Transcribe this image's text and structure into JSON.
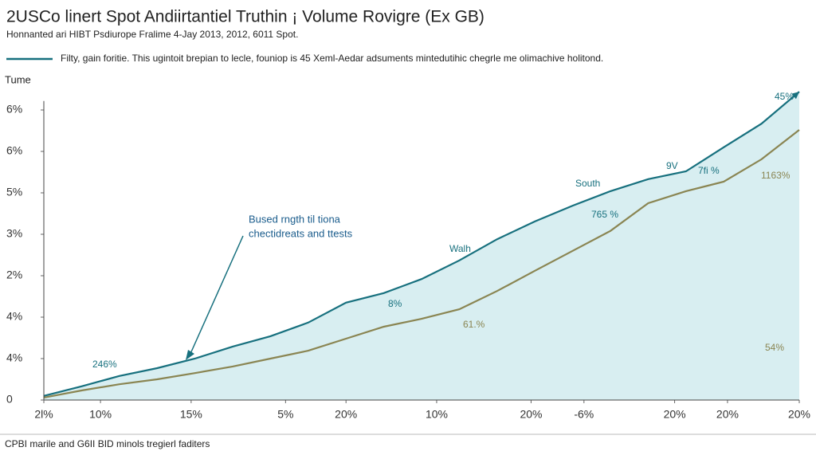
{
  "chart_data": {
    "type": "line",
    "title": "2USCo linert Spot Andiirtantiel Truthin ¡ Volume Rovigre (Ex GB)",
    "subtitle": "Honnanted ari HIBT Psdiurope Fralime 4-Jay 2013, 2012, 6011 Spot.",
    "y_label": "Tume",
    "footer": "CPBI marile and G6II BID minols tregierl faditers",
    "x": [
      0,
      5,
      10,
      15,
      20,
      25,
      30,
      35,
      40,
      45,
      50,
      55,
      60,
      65,
      70,
      75,
      80,
      85,
      90,
      95,
      100
    ],
    "xlim": [
      0,
      100
    ],
    "xticks": [
      {
        "value": 0,
        "label": "2l%"
      },
      {
        "value": 7.5,
        "label": "10%"
      },
      {
        "value": 19.5,
        "label": "15%"
      },
      {
        "value": 32,
        "label": "5%"
      },
      {
        "value": 40,
        "label": "20%"
      },
      {
        "value": 52,
        "label": "10%"
      },
      {
        "value": 64.5,
        "label": "20%"
      },
      {
        "value": 71.5,
        "label": "-6%"
      },
      {
        "value": 83.5,
        "label": "20%"
      },
      {
        "value": 90.5,
        "label": "20%"
      },
      {
        "value": 100,
        "label": "20%"
      }
    ],
    "ylim": [
      0,
      7.6
    ],
    "yticks": [
      0,
      {
        "value": 1,
        "label": "4%"
      },
      {
        "value": 2,
        "label": "4%"
      },
      {
        "value": 3,
        "label": "2%"
      },
      {
        "value": 4,
        "label": "3%"
      },
      {
        "value": 5,
        "label": "5%"
      },
      {
        "value": 6,
        "label": "6%"
      },
      {
        "value": 7,
        "label": "6%"
      }
    ],
    "series": [
      {
        "name": "Filty, gain foritie. This ugintoit brepian to lecle, founiop is 45 Xeml-Aedar adsuments mintedutihic chegrle me olimachive holitond.",
        "color": "#17707e",
        "fill": "#d8eef1",
        "values": [
          0.1,
          0.33,
          0.58,
          0.77,
          1.0,
          1.29,
          1.54,
          1.87,
          2.35,
          2.58,
          2.92,
          3.37,
          3.88,
          4.31,
          4.69,
          5.04,
          5.33,
          5.52,
          6.1,
          6.67,
          7.44
        ]
      },
      {
        "color": "#8a8552",
        "values": [
          0.06,
          0.23,
          0.38,
          0.5,
          0.65,
          0.81,
          1.0,
          1.19,
          1.48,
          1.77,
          1.96,
          2.19,
          2.63,
          3.12,
          3.6,
          4.08,
          4.75,
          5.04,
          5.27,
          5.81,
          6.52
        ]
      }
    ],
    "annotations": [
      "Bused rngth til tiona",
      "chectidreats and ttests",
      "South",
      "9V",
      "7fi %",
      "1163%",
      "765 %",
      "Walh",
      "8%",
      "61.%",
      "54%",
      "246%",
      "45%"
    ]
  }
}
